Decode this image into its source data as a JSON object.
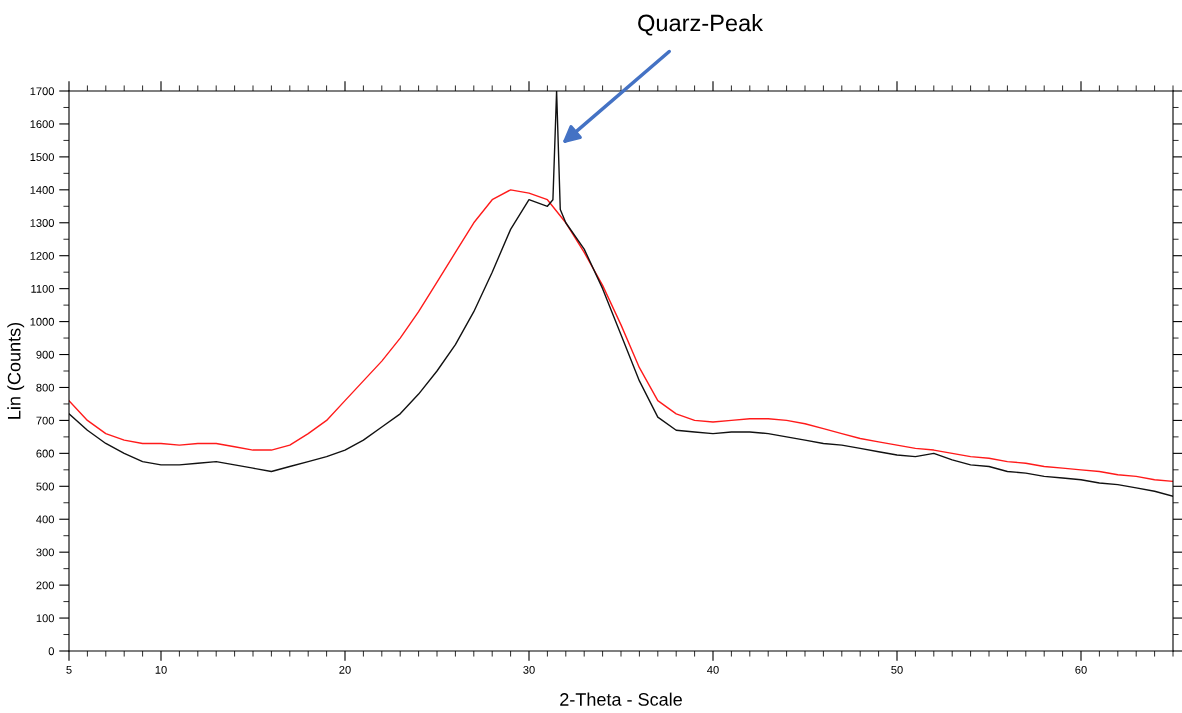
{
  "chart_data": {
    "type": "line",
    "xlabel": "2-Theta - Scale",
    "ylabel": "Lin (Counts)",
    "xlim": [
      5,
      65
    ],
    "xticks": [
      5,
      10,
      20,
      30,
      40,
      50,
      60
    ],
    "ylim": [
      0,
      1700
    ],
    "yticks": [
      0,
      100,
      200,
      300,
      400,
      500,
      600,
      700,
      800,
      900,
      1000,
      1100,
      1200,
      1300,
      1400,
      1500,
      1600,
      1700
    ],
    "grid": false,
    "legend": false,
    "marker": "none",
    "line_style": "solid",
    "annotations": [
      {
        "text": "Quarz-Peak",
        "x": 31.8,
        "y": 1540
      }
    ],
    "series": [
      {
        "color": "#ff1a1a",
        "x": [
          5,
          6,
          7,
          8,
          9,
          10,
          11,
          12,
          13,
          14,
          15,
          16,
          17,
          18,
          19,
          20,
          21,
          22,
          23,
          24,
          25,
          26,
          27,
          28,
          29,
          30,
          31,
          32,
          33,
          34,
          35,
          36,
          37,
          38,
          39,
          40,
          41,
          42,
          43,
          44,
          45,
          46,
          47,
          48,
          49,
          50,
          51,
          52,
          53,
          54,
          55,
          56,
          57,
          58,
          59,
          60,
          61,
          62,
          63,
          64,
          65
        ],
        "values": [
          760,
          700,
          660,
          640,
          630,
          630,
          625,
          630,
          630,
          620,
          610,
          610,
          625,
          660,
          700,
          760,
          820,
          880,
          950,
          1030,
          1120,
          1210,
          1300,
          1370,
          1400,
          1390,
          1370,
          1300,
          1210,
          1110,
          990,
          860,
          760,
          720,
          700,
          695,
          700,
          705,
          705,
          700,
          690,
          675,
          660,
          645,
          635,
          625,
          615,
          610,
          600,
          590,
          585,
          575,
          570,
          560,
          555,
          550,
          545,
          535,
          530,
          520,
          515
        ]
      },
      {
        "color": "#111111",
        "x": [
          5,
          6,
          7,
          8,
          9,
          10,
          11,
          12,
          13,
          14,
          15,
          16,
          17,
          18,
          19,
          20,
          21,
          22,
          23,
          24,
          25,
          26,
          27,
          28,
          29,
          30,
          31,
          31.3,
          31.5,
          31.7,
          32,
          33,
          34,
          35,
          36,
          37,
          38,
          39,
          40,
          41,
          42,
          43,
          44,
          45,
          46,
          47,
          48,
          49,
          50,
          51,
          52,
          53,
          54,
          55,
          56,
          57,
          58,
          59,
          60,
          61,
          62,
          63,
          64,
          65
        ],
        "values": [
          720,
          670,
          630,
          600,
          575,
          565,
          565,
          570,
          575,
          565,
          555,
          545,
          560,
          575,
          590,
          610,
          640,
          680,
          720,
          780,
          850,
          930,
          1030,
          1150,
          1280,
          1370,
          1350,
          1370,
          1700,
          1340,
          1300,
          1220,
          1100,
          960,
          820,
          710,
          670,
          665,
          660,
          665,
          665,
          660,
          650,
          640,
          630,
          625,
          615,
          605,
          595,
          590,
          600,
          580,
          565,
          560,
          545,
          540,
          530,
          525,
          520,
          510,
          505,
          495,
          485,
          470
        ]
      }
    ]
  }
}
